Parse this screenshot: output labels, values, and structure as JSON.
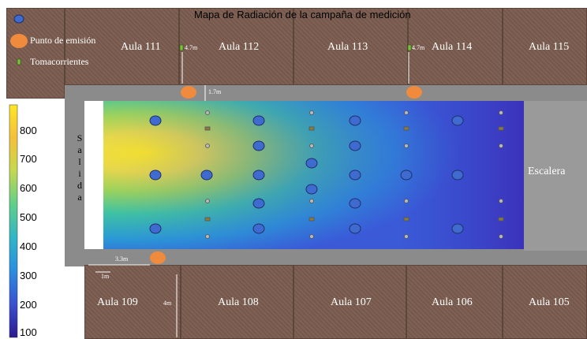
{
  "title": "Mapa de Radiación de la campaña de medición",
  "legend": {
    "blue_marker_label": "",
    "emission_label": "Punto de emisión",
    "outlet_label": "Tomacorrientes"
  },
  "rooms_top": [
    "Aula 111",
    "Aula 112",
    "Aula 113",
    "Aula 114",
    "Aula 115"
  ],
  "rooms_bottom": [
    "Aula 109",
    "Aula 108",
    "Aula 107",
    "Aula 106",
    "Aula 105"
  ],
  "exit_label": [
    "S",
    "a",
    "l",
    "i",
    "d",
    "a"
  ],
  "stairs_label": "Escalera",
  "dimensions": {
    "top_left": "4.7m",
    "top_right": "4.7m",
    "corridor": "1.7m",
    "bottom_width": "3.3m",
    "bottom_small": "1m",
    "bottom_height": "4m"
  },
  "colorbar": {
    "ticks": [
      "800",
      "700",
      "600",
      "500",
      "400",
      "300",
      "200",
      "100"
    ],
    "colors": [
      "#fde725",
      "#f4a93b",
      "#c6d84e",
      "#3fc4a2",
      "#2aa7d7",
      "#3a6ad8",
      "#3b2fb8",
      "#2b1a8f"
    ]
  },
  "colors": {
    "room": "#7a5c4e",
    "corridor": "#8b8b8b",
    "measurement_point": "#3f6bd0",
    "emission_point": "#f08a3c",
    "outlet": "#7bbf3a"
  }
}
